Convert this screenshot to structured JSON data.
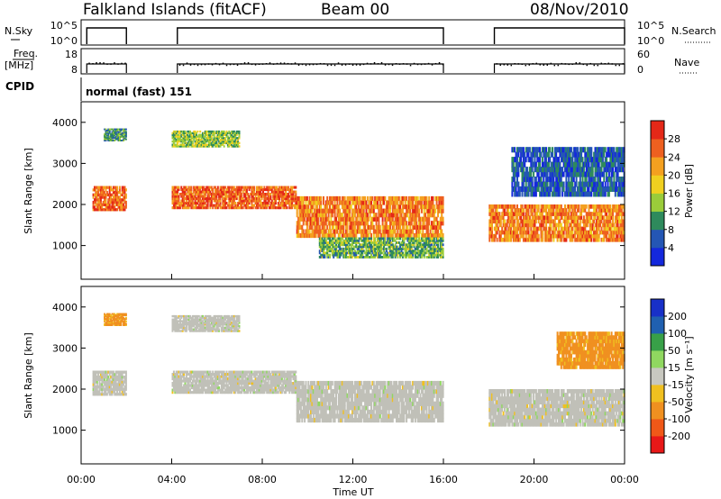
{
  "header": {
    "title": "Falkland Islands (fitACF)",
    "beam": "Beam 00",
    "date": "08/Nov/2010"
  },
  "strips": {
    "nsky_label": "N.Sky",
    "nsky_ticks": [
      "10^5",
      "10^0"
    ],
    "nsearch_label": "N.Search",
    "nsearch_ticks": [
      "10^5",
      "10^0"
    ],
    "freq_label_1": "Freq.",
    "freq_label_2": "[MHz]",
    "freq_ticks": [
      "18",
      "8"
    ],
    "nave_label": "Nave",
    "nave_ticks": [
      "60",
      "0"
    ],
    "cpid_label": "CPID",
    "cpid_value": "normal (fast) 151"
  },
  "colors": {
    "power": [
      "#1428dc",
      "#2456b4",
      "#2e8a5c",
      "#9acc3a",
      "#f0d020",
      "#f4a020",
      "#ee6020",
      "#e42818"
    ],
    "velocity": [
      "#e81818",
      "#f05818",
      "#f09020",
      "#f0c020",
      "#c8c8c0",
      "#90d860",
      "#38a048",
      "#2060b0",
      "#1830c8"
    ],
    "ground_scatter": "#c0c0b8"
  },
  "chart_data": [
    {
      "type": "heatmap",
      "name": "power",
      "ylabel": "Slant Range [km]",
      "xlabel": "",
      "yticks": [
        "1000",
        "2000",
        "3000",
        "4000"
      ],
      "colorbar_label": "Power [dB]",
      "colorbar_ticks": [
        "4",
        "8",
        "12",
        "16",
        "20",
        "24",
        "28"
      ],
      "colorbar_range": [
        0,
        32
      ],
      "x_range_hours": [
        0,
        24
      ],
      "y_range_km": [
        180,
        4500
      ],
      "data_gaps_hours": [
        [
          2,
          4
        ],
        [
          16,
          18
        ]
      ],
      "echo_bands": [
        {
          "hours": [
            0.5,
            2.0
          ],
          "range_km": [
            1850,
            2450
          ],
          "power_db": 26
        },
        {
          "hours": [
            1.0,
            2.0
          ],
          "range_km": [
            3550,
            3850
          ],
          "power_db": 10
        },
        {
          "hours": [
            4.0,
            9.5
          ],
          "range_km": [
            1900,
            2450
          ],
          "power_db": 26
        },
        {
          "hours": [
            4.0,
            7.0
          ],
          "range_km": [
            3400,
            3800
          ],
          "power_db": 14
        },
        {
          "hours": [
            9.5,
            16.0
          ],
          "range_km": [
            1200,
            2200
          ],
          "power_db": 24
        },
        {
          "hours": [
            10.5,
            16.0
          ],
          "range_km": [
            700,
            1200
          ],
          "power_db": 12
        },
        {
          "hours": [
            18.0,
            24.0
          ],
          "range_km": [
            1100,
            2000
          ],
          "power_db": 24
        },
        {
          "hours": [
            19.0,
            24.0
          ],
          "range_km": [
            2200,
            3400
          ],
          "power_db": 6
        }
      ]
    },
    {
      "type": "heatmap",
      "name": "velocity",
      "ylabel": "Slant Range [km]",
      "xlabel": "Time UT",
      "yticks": [
        "1000",
        "2000",
        "3000",
        "4000"
      ],
      "xticks": [
        "00:00",
        "04:00",
        "08:00",
        "12:00",
        "16:00",
        "20:00",
        "00:00"
      ],
      "colorbar_label": "Velocity [m s⁻¹]",
      "colorbar_ticks": [
        "-200",
        "-100",
        "-50",
        "-15",
        "15",
        "50",
        "100",
        "200"
      ],
      "x_range_hours": [
        0,
        24
      ],
      "y_range_km": [
        180,
        4500
      ],
      "echo_bands": [
        {
          "hours": [
            0.5,
            2.0
          ],
          "range_km": [
            1850,
            2450
          ],
          "velocity": 0,
          "ground_scatter": true
        },
        {
          "hours": [
            1.0,
            2.0
          ],
          "range_km": [
            3550,
            3850
          ],
          "velocity": -60
        },
        {
          "hours": [
            4.0,
            9.5
          ],
          "range_km": [
            1900,
            2450
          ],
          "velocity": 0,
          "ground_scatter": true
        },
        {
          "hours": [
            4.0,
            7.0
          ],
          "range_km": [
            3400,
            3800
          ],
          "velocity": 0,
          "ground_scatter": true
        },
        {
          "hours": [
            9.5,
            16.0
          ],
          "range_km": [
            1200,
            2200
          ],
          "velocity": 0,
          "ground_scatter": true
        },
        {
          "hours": [
            18.0,
            24.0
          ],
          "range_km": [
            1100,
            2000
          ],
          "velocity": 0,
          "ground_scatter": true
        },
        {
          "hours": [
            21.0,
            24.0
          ],
          "range_km": [
            2500,
            3400
          ],
          "velocity": -60
        }
      ]
    }
  ]
}
